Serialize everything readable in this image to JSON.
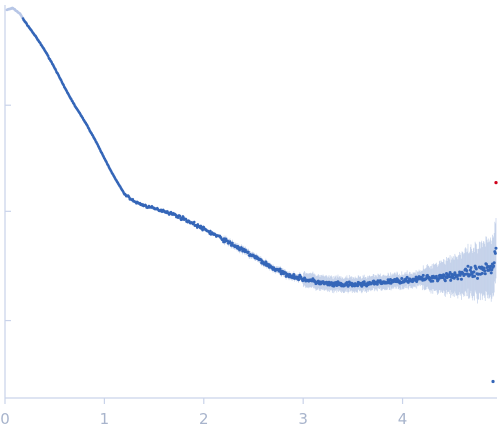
{
  "chart_data": {
    "type": "scatter",
    "title": "",
    "xlabel": "",
    "ylabel": "",
    "xlim": [
      0,
      4.95
    ],
    "ylim": [
      0,
      1
    ],
    "x_ticks": [
      0,
      1,
      2,
      3,
      4
    ],
    "x_tick_labels": [
      "0",
      "1",
      "2",
      "3",
      "4"
    ],
    "y_ticks": [
      0.197,
      0.475,
      0.745
    ],
    "grid": false,
    "colors": {
      "points": "#3566b8",
      "early_points": "#b7c6e6",
      "error_bars": "#b3c4e4",
      "axis": "#c9d3ea",
      "outlier": "#d0021b"
    },
    "series": [
      {
        "points": [
          [
            0.02,
            0.988
          ],
          [
            0.08,
            0.992
          ],
          [
            0.15,
            0.978
          ],
          [
            0.2,
            0.958
          ],
          [
            0.3,
            0.923
          ],
          [
            0.4,
            0.885
          ],
          [
            0.5,
            0.84
          ],
          [
            0.6,
            0.79
          ],
          [
            0.7,
            0.745
          ],
          [
            0.8,
            0.705
          ],
          [
            0.9,
            0.66
          ],
          [
            1.0,
            0.61
          ],
          [
            1.1,
            0.562
          ],
          [
            1.2,
            0.52
          ],
          [
            1.3,
            0.5
          ],
          [
            1.4,
            0.49
          ],
          [
            1.5,
            0.482
          ],
          [
            1.6,
            0.476
          ],
          [
            1.7,
            0.467
          ],
          [
            1.8,
            0.456
          ],
          [
            1.9,
            0.443
          ],
          [
            2.0,
            0.43
          ],
          [
            2.1,
            0.417
          ],
          [
            2.2,
            0.403
          ],
          [
            2.3,
            0.389
          ],
          [
            2.4,
            0.375
          ],
          [
            2.5,
            0.361
          ],
          [
            2.6,
            0.345
          ],
          [
            2.7,
            0.33
          ],
          [
            2.8,
            0.318
          ],
          [
            2.9,
            0.31
          ],
          [
            3.0,
            0.303
          ],
          [
            3.1,
            0.297
          ],
          [
            3.2,
            0.292
          ],
          [
            3.3,
            0.289
          ],
          [
            3.4,
            0.288
          ],
          [
            3.5,
            0.288
          ],
          [
            3.6,
            0.29
          ],
          [
            3.7,
            0.292
          ],
          [
            3.8,
            0.294
          ],
          [
            3.9,
            0.297
          ],
          [
            4.0,
            0.299
          ],
          [
            4.1,
            0.301
          ],
          [
            4.2,
            0.304
          ],
          [
            4.3,
            0.306
          ],
          [
            4.4,
            0.309
          ],
          [
            4.5,
            0.312
          ],
          [
            4.6,
            0.314
          ],
          [
            4.7,
            0.316
          ],
          [
            4.8,
            0.32
          ],
          [
            4.9,
            0.33
          ],
          [
            4.94,
            0.38
          ]
        ]
      }
    ],
    "outliers": [
      {
        "x": 4.94,
        "y": 0.548,
        "color": "#d0021b"
      },
      {
        "x": 4.91,
        "y": 0.042,
        "color": "#3566b8"
      }
    ]
  }
}
